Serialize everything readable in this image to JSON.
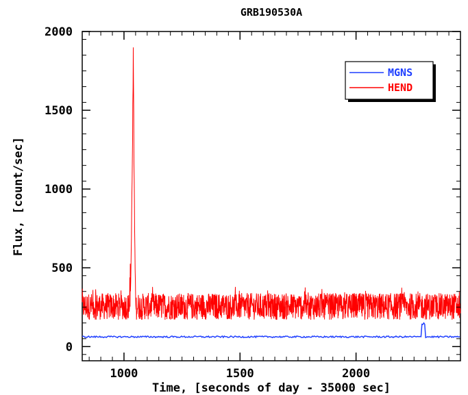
{
  "chart_data": {
    "type": "line",
    "title": "GRB190530A",
    "xlabel": "Time, [seconds of day - 35000 sec]",
    "ylabel": "Flux, [count/sec]",
    "xlim": [
      820,
      2450
    ],
    "ylim": [
      -90,
      2000
    ],
    "x_ticks": [
      1000,
      1500,
      2000
    ],
    "y_ticks": [
      0,
      500,
      1000,
      1500,
      2000
    ],
    "x_tick_labels": [
      "1000",
      "1500",
      "2000"
    ],
    "y_tick_labels": [
      "0",
      "500",
      "1000",
      "1500",
      "2000"
    ],
    "grid": false,
    "legend": "top-right",
    "series": [
      {
        "name": "MGNS",
        "color": "#1f3fff",
        "baseline": 62,
        "noise": 5,
        "features": [
          {
            "x_start": 2283,
            "x_end": 2296,
            "peak": 155
          }
        ]
      },
      {
        "name": "HEND",
        "color": "#ff0000",
        "baseline": 235,
        "noise_range": [
          170,
          340
        ],
        "features": [
          {
            "x_start": 1025,
            "x_peak": 1040,
            "x_end": 1052,
            "peak": 1920
          }
        ]
      }
    ]
  }
}
